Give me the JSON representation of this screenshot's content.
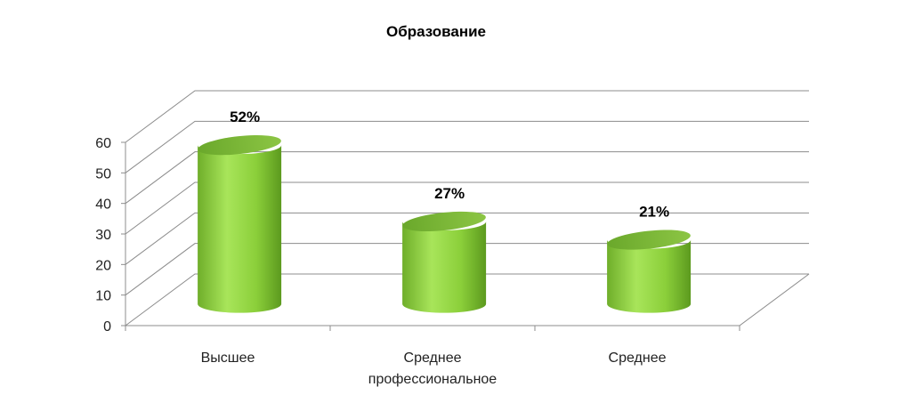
{
  "chart_data": {
    "type": "bar",
    "title": "Образование",
    "categories": [
      "Высшее",
      "Среднее профессиональное",
      "Среднее"
    ],
    "category_lines": [
      [
        "Высшее"
      ],
      [
        "Среднее",
        "профессиональное"
      ],
      [
        "Среднее"
      ]
    ],
    "values": [
      52,
      27,
      21
    ],
    "data_labels": [
      "52%",
      "27%",
      "21%"
    ],
    "ylim": [
      0,
      60
    ],
    "yticks": [
      0,
      10,
      20,
      30,
      40,
      50,
      60
    ],
    "grid": true,
    "legend": "none",
    "bar_shape": "3d-cylinder",
    "colors": {
      "bar_light": "#a8e55a",
      "bar_mid": "#8bcf3a",
      "bar_dark": "#5c9a1e",
      "bar_top": "#7db437"
    }
  }
}
